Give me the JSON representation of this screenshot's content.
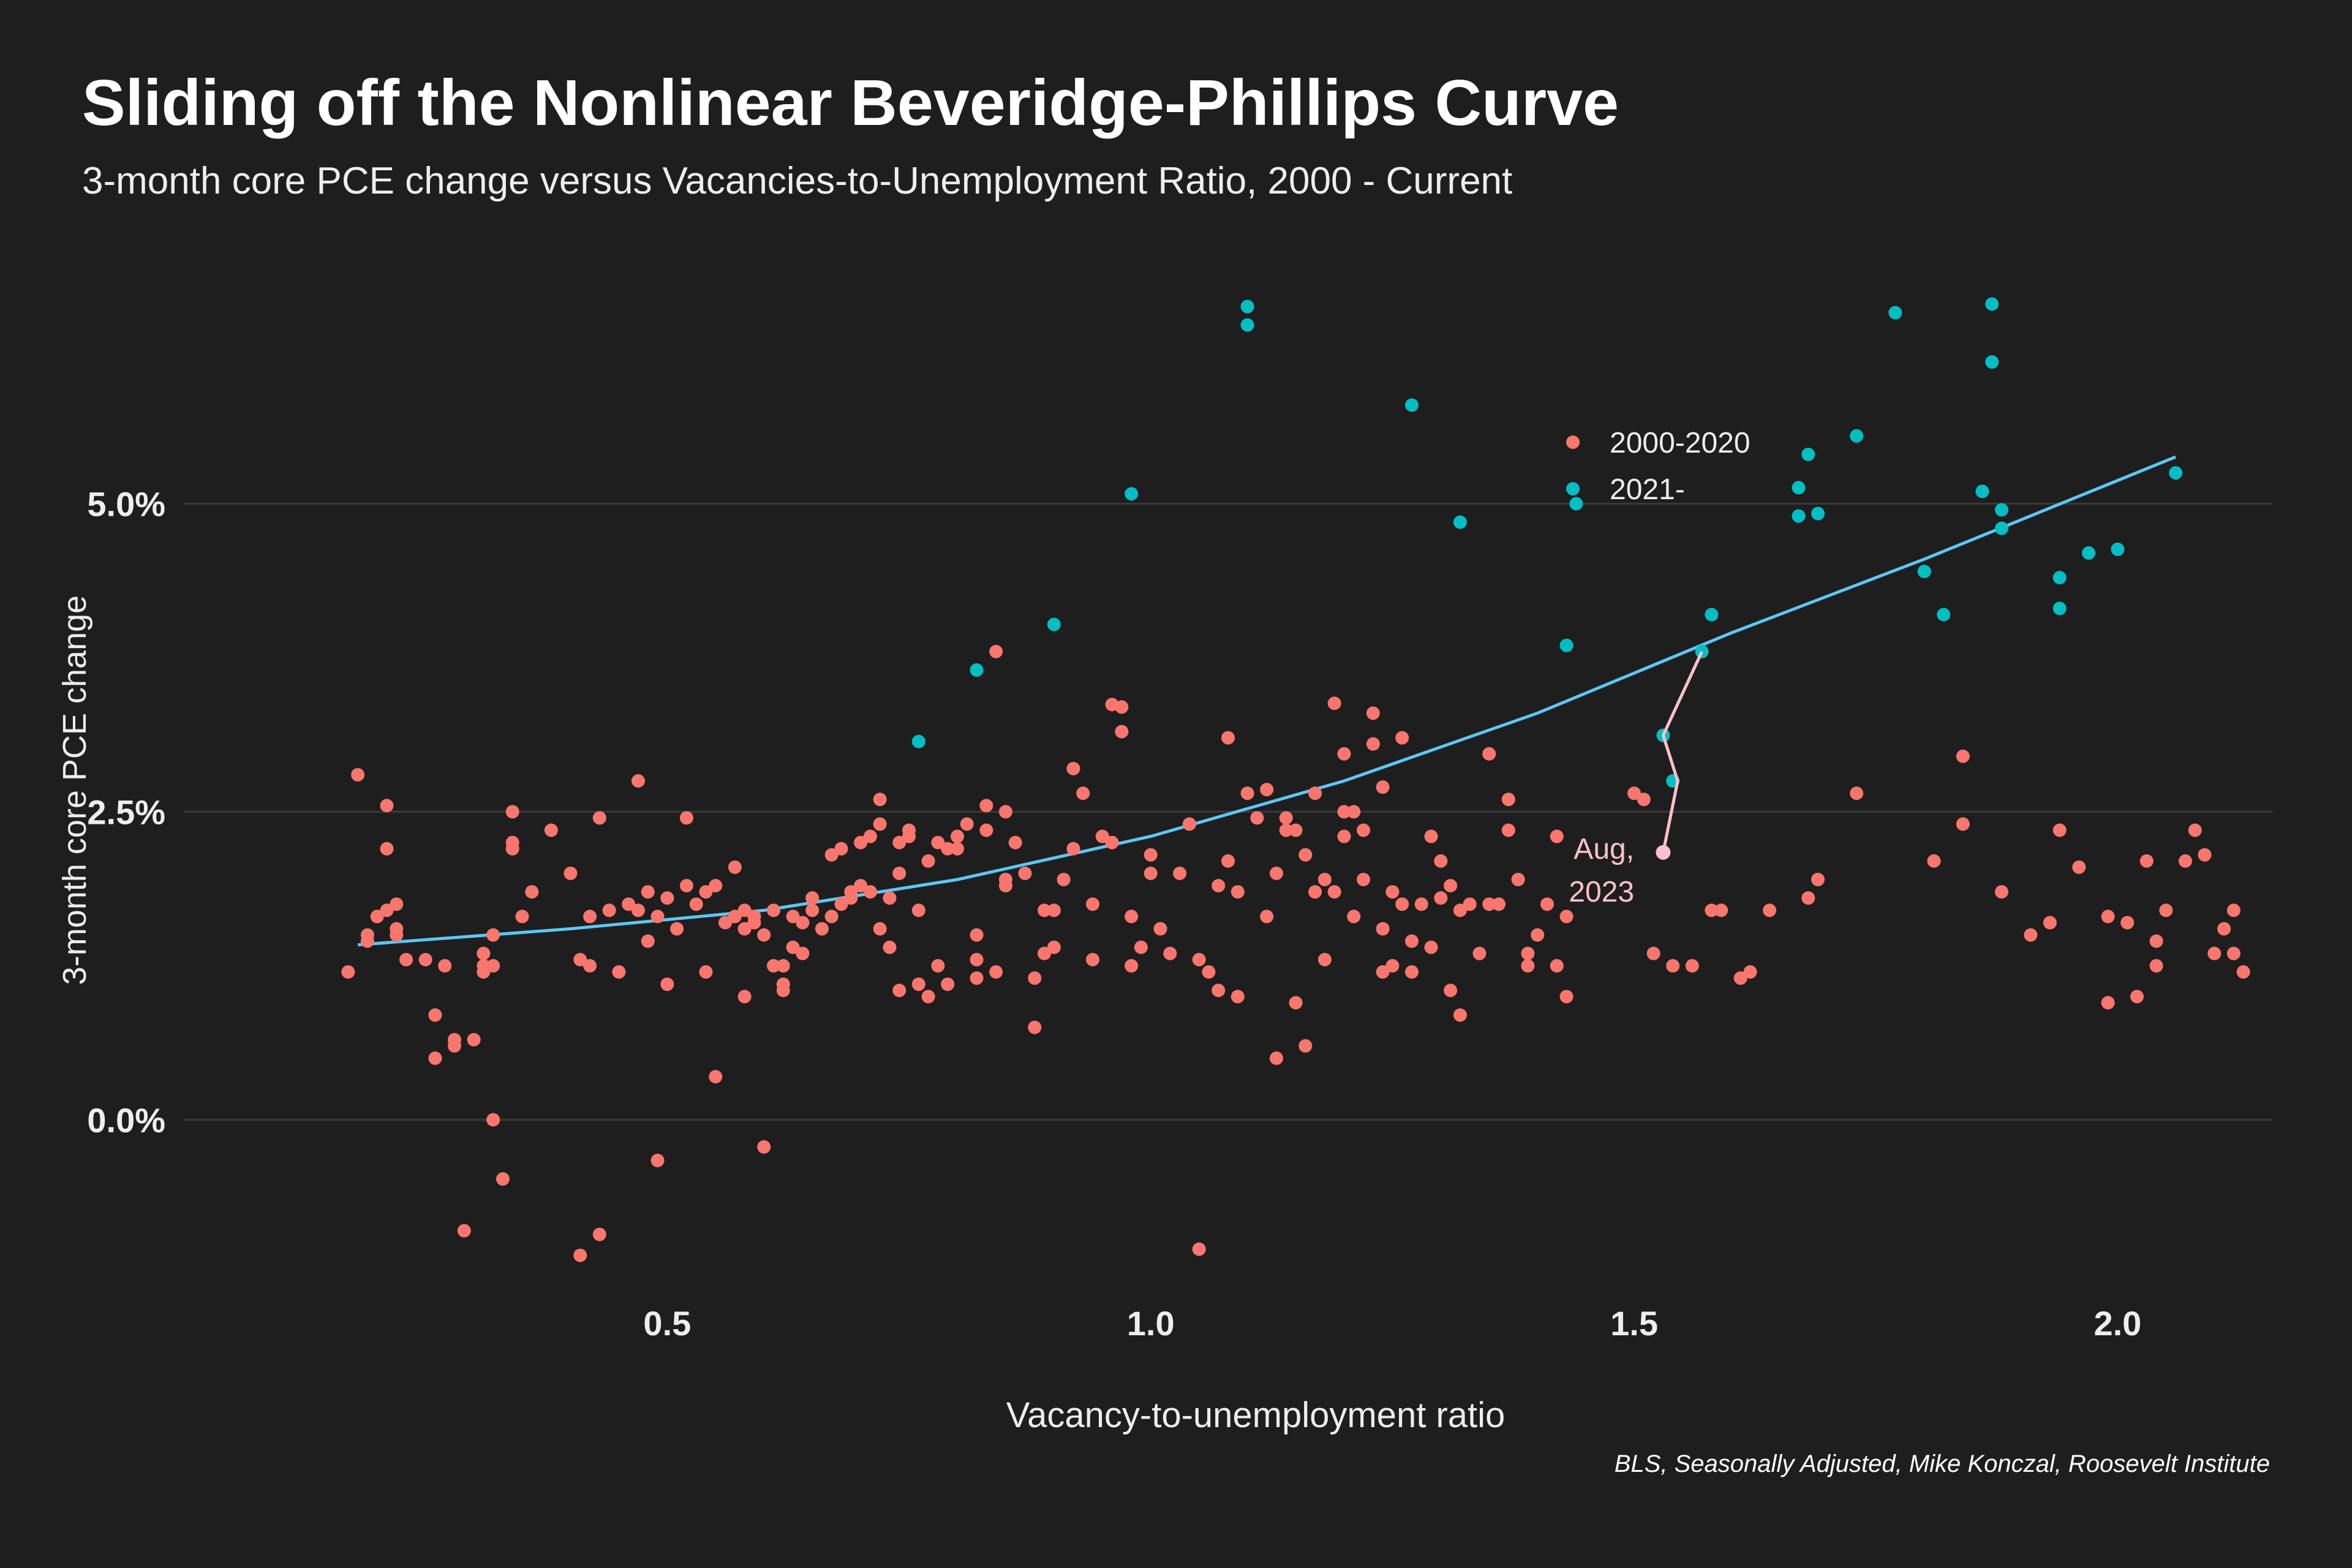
{
  "chart_data": {
    "type": "scatter",
    "title": "Sliding off the Nonlinear Beveridge-Phillips Curve",
    "subtitle": "3-month core PCE change versus Vacancies-to-Unemployment Ratio, 2000 - Current",
    "xlabel": "Vacancy-to-unemployment ratio",
    "ylabel": "3-month core PCE change",
    "caption": "BLS, Seasonally Adjusted, Mike Konczal, Roosevelt Institute",
    "xlim": [
      0.0,
      2.16
    ],
    "ylim": [
      -1.45,
      6.95
    ],
    "x_ticks": [
      0.5,
      1.0,
      1.5,
      2.0
    ],
    "x_tick_labels": [
      "0.5",
      "1.0",
      "1.5",
      "2.0"
    ],
    "y_ticks": [
      0.0,
      2.5,
      5.0
    ],
    "y_tick_labels": [
      "0.0%",
      "2.5%",
      "5.0%"
    ],
    "grid": "horizontal-major",
    "legend_position": "top-right",
    "colors": {
      "background": "#1e1e1e",
      "grid": "#3a3a3a",
      "series_2000_2020": "#f8766d",
      "series_2021": "#00bfc4",
      "trend": "#5bc8f5",
      "recent_path": "#ffc0cb",
      "text": "#eeeeee"
    },
    "series": [
      {
        "name": "2000-2020",
        "color": "#f8766d",
        "points": [
          [
            0.18,
            2.8
          ],
          [
            0.21,
            2.55
          ],
          [
            0.21,
            2.2
          ],
          [
            0.17,
            1.2
          ],
          [
            0.19,
            1.45
          ],
          [
            0.19,
            1.5
          ],
          [
            0.2,
            1.65
          ],
          [
            0.21,
            1.7
          ],
          [
            0.22,
            1.75
          ],
          [
            0.22,
            1.55
          ],
          [
            0.22,
            1.5
          ],
          [
            0.23,
            1.3
          ],
          [
            0.25,
            1.3
          ],
          [
            0.26,
            0.85
          ],
          [
            0.26,
            0.5
          ],
          [
            0.27,
            1.25
          ],
          [
            0.28,
            0.6
          ],
          [
            0.28,
            0.65
          ],
          [
            0.29,
            -0.9
          ],
          [
            0.3,
            0.65
          ],
          [
            0.31,
            1.35
          ],
          [
            0.31,
            1.25
          ],
          [
            0.31,
            1.2
          ],
          [
            0.32,
            1.25
          ],
          [
            0.32,
            1.5
          ],
          [
            0.32,
            0.0
          ],
          [
            0.33,
            -0.48
          ],
          [
            0.34,
            2.2
          ],
          [
            0.34,
            2.25
          ],
          [
            0.34,
            2.5
          ],
          [
            0.35,
            1.65
          ],
          [
            0.36,
            1.85
          ],
          [
            0.38,
            2.35
          ],
          [
            0.4,
            2.0
          ],
          [
            0.41,
            1.3
          ],
          [
            0.41,
            -1.1
          ],
          [
            0.42,
            1.25
          ],
          [
            0.42,
            1.65
          ],
          [
            0.43,
            2.45
          ],
          [
            0.43,
            -0.93
          ],
          [
            0.44,
            1.7
          ],
          [
            0.45,
            1.2
          ],
          [
            0.46,
            1.75
          ],
          [
            0.47,
            1.7
          ],
          [
            0.47,
            2.75
          ],
          [
            0.48,
            1.45
          ],
          [
            0.48,
            1.85
          ],
          [
            0.49,
            -0.33
          ],
          [
            0.49,
            1.65
          ],
          [
            0.5,
            1.8
          ],
          [
            0.5,
            1.1
          ],
          [
            0.51,
            1.55
          ],
          [
            0.52,
            2.45
          ],
          [
            0.52,
            1.9
          ],
          [
            0.53,
            1.75
          ],
          [
            0.54,
            1.2
          ],
          [
            0.54,
            1.85
          ],
          [
            0.55,
            1.9
          ],
          [
            0.55,
            0.35
          ],
          [
            0.56,
            1.6
          ],
          [
            0.57,
            2.05
          ],
          [
            0.57,
            1.65
          ],
          [
            0.58,
            1.7
          ],
          [
            0.58,
            1.55
          ],
          [
            0.58,
            1.0
          ],
          [
            0.59,
            1.65
          ],
          [
            0.59,
            1.6
          ],
          [
            0.6,
            -0.22
          ],
          [
            0.6,
            1.5
          ],
          [
            0.61,
            1.7
          ],
          [
            0.61,
            1.25
          ],
          [
            0.62,
            1.05
          ],
          [
            0.62,
            1.1
          ],
          [
            0.62,
            1.25
          ],
          [
            0.63,
            1.65
          ],
          [
            0.63,
            1.4
          ],
          [
            0.64,
            1.35
          ],
          [
            0.64,
            1.6
          ],
          [
            0.65,
            1.8
          ],
          [
            0.65,
            1.7
          ],
          [
            0.66,
            1.55
          ],
          [
            0.67,
            1.65
          ],
          [
            0.67,
            2.15
          ],
          [
            0.68,
            2.2
          ],
          [
            0.68,
            1.75
          ],
          [
            0.69,
            1.8
          ],
          [
            0.69,
            1.85
          ],
          [
            0.7,
            1.9
          ],
          [
            0.7,
            2.25
          ],
          [
            0.71,
            1.85
          ],
          [
            0.71,
            2.3
          ],
          [
            0.72,
            2.6
          ],
          [
            0.72,
            2.4
          ],
          [
            0.72,
            1.55
          ],
          [
            0.73,
            1.4
          ],
          [
            0.73,
            1.8
          ],
          [
            0.74,
            2.25
          ],
          [
            0.74,
            1.05
          ],
          [
            0.74,
            2.0
          ],
          [
            0.75,
            2.3
          ],
          [
            0.75,
            2.35
          ],
          [
            0.76,
            1.7
          ],
          [
            0.76,
            1.1
          ],
          [
            0.77,
            2.1
          ],
          [
            0.77,
            1.0
          ],
          [
            0.78,
            1.25
          ],
          [
            0.78,
            2.25
          ],
          [
            0.79,
            2.2
          ],
          [
            0.79,
            1.1
          ],
          [
            0.8,
            2.3
          ],
          [
            0.8,
            2.2
          ],
          [
            0.81,
            2.4
          ],
          [
            0.82,
            1.3
          ],
          [
            0.82,
            1.5
          ],
          [
            0.82,
            1.15
          ],
          [
            0.83,
            2.55
          ],
          [
            0.83,
            2.35
          ],
          [
            0.84,
            3.8
          ],
          [
            0.84,
            1.2
          ],
          [
            0.85,
            1.95
          ],
          [
            0.85,
            2.5
          ],
          [
            0.85,
            1.9
          ],
          [
            0.86,
            2.25
          ],
          [
            0.87,
            2.0
          ],
          [
            0.88,
            1.15
          ],
          [
            0.88,
            0.75
          ],
          [
            0.89,
            1.35
          ],
          [
            0.89,
            1.7
          ],
          [
            0.9,
            1.7
          ],
          [
            0.9,
            1.4
          ],
          [
            0.91,
            1.95
          ],
          [
            0.92,
            2.85
          ],
          [
            0.92,
            2.2
          ],
          [
            0.93,
            2.65
          ],
          [
            0.94,
            1.75
          ],
          [
            0.94,
            1.3
          ],
          [
            0.95,
            2.3
          ],
          [
            0.96,
            2.25
          ],
          [
            0.96,
            3.37
          ],
          [
            0.97,
            3.35
          ],
          [
            0.97,
            3.15
          ],
          [
            0.98,
            1.25
          ],
          [
            0.98,
            1.65
          ],
          [
            0.99,
            1.4
          ],
          [
            1.0,
            2.15
          ],
          [
            1.0,
            2.0
          ],
          [
            1.01,
            1.55
          ],
          [
            1.02,
            1.35
          ],
          [
            1.03,
            2.0
          ],
          [
            1.04,
            2.4
          ],
          [
            1.05,
            1.3
          ],
          [
            1.05,
            -1.05
          ],
          [
            1.06,
            1.2
          ],
          [
            1.07,
            1.9
          ],
          [
            1.07,
            1.05
          ],
          [
            1.08,
            3.1
          ],
          [
            1.08,
            2.1
          ],
          [
            1.09,
            1.0
          ],
          [
            1.09,
            1.85
          ],
          [
            1.1,
            2.65
          ],
          [
            1.11,
            2.45
          ],
          [
            1.12,
            2.68
          ],
          [
            1.12,
            1.65
          ],
          [
            1.13,
            2.0
          ],
          [
            1.13,
            0.5
          ],
          [
            1.14,
            2.35
          ],
          [
            1.14,
            2.45
          ],
          [
            1.15,
            2.35
          ],
          [
            1.15,
            0.95
          ],
          [
            1.16,
            2.15
          ],
          [
            1.16,
            0.6
          ],
          [
            1.17,
            1.85
          ],
          [
            1.17,
            2.65
          ],
          [
            1.18,
            1.3
          ],
          [
            1.18,
            1.95
          ],
          [
            1.19,
            3.38
          ],
          [
            1.19,
            1.85
          ],
          [
            1.2,
            2.5
          ],
          [
            1.2,
            2.3
          ],
          [
            1.2,
            2.97
          ],
          [
            1.21,
            1.65
          ],
          [
            1.21,
            2.5
          ],
          [
            1.22,
            1.95
          ],
          [
            1.22,
            2.35
          ],
          [
            1.23,
            3.3
          ],
          [
            1.23,
            3.05
          ],
          [
            1.24,
            1.55
          ],
          [
            1.24,
            2.7
          ],
          [
            1.24,
            1.2
          ],
          [
            1.25,
            1.85
          ],
          [
            1.25,
            1.25
          ],
          [
            1.26,
            1.75
          ],
          [
            1.26,
            3.1
          ],
          [
            1.27,
            1.45
          ],
          [
            1.27,
            1.2
          ],
          [
            1.28,
            1.75
          ],
          [
            1.29,
            2.3
          ],
          [
            1.29,
            1.4
          ],
          [
            1.3,
            2.1
          ],
          [
            1.3,
            1.8
          ],
          [
            1.31,
            1.9
          ],
          [
            1.31,
            1.05
          ],
          [
            1.32,
            0.85
          ],
          [
            1.32,
            1.7
          ],
          [
            1.33,
            1.75
          ],
          [
            1.34,
            1.35
          ],
          [
            1.35,
            1.75
          ],
          [
            1.35,
            2.97
          ],
          [
            1.36,
            1.75
          ],
          [
            1.37,
            2.6
          ],
          [
            1.37,
            2.35
          ],
          [
            1.38,
            1.95
          ],
          [
            1.39,
            1.25
          ],
          [
            1.39,
            1.35
          ],
          [
            1.4,
            1.5
          ],
          [
            1.41,
            1.75
          ],
          [
            1.42,
            2.3
          ],
          [
            1.42,
            1.25
          ],
          [
            1.43,
            1.0
          ],
          [
            1.43,
            1.65
          ],
          [
            1.5,
            2.65
          ],
          [
            1.51,
            2.6
          ],
          [
            1.52,
            1.35
          ],
          [
            1.54,
            1.25
          ],
          [
            1.56,
            1.25
          ],
          [
            1.58,
            1.7
          ],
          [
            1.59,
            1.7
          ],
          [
            1.61,
            1.15
          ],
          [
            1.62,
            1.2
          ],
          [
            1.64,
            1.7
          ],
          [
            1.68,
            1.8
          ],
          [
            1.69,
            1.95
          ],
          [
            1.73,
            2.65
          ],
          [
            1.81,
            2.1
          ],
          [
            1.84,
            2.95
          ],
          [
            1.84,
            2.4
          ],
          [
            1.88,
            1.85
          ],
          [
            1.91,
            1.5
          ],
          [
            1.93,
            1.6
          ],
          [
            1.94,
            2.35
          ],
          [
            1.96,
            2.05
          ],
          [
            1.99,
            1.65
          ],
          [
            1.99,
            0.95
          ],
          [
            2.01,
            1.6
          ],
          [
            2.02,
            1.0
          ],
          [
            2.03,
            2.1
          ],
          [
            2.04,
            1.45
          ],
          [
            2.04,
            1.25
          ],
          [
            2.05,
            1.7
          ],
          [
            2.07,
            2.1
          ],
          [
            2.08,
            2.35
          ],
          [
            2.09,
            2.15
          ],
          [
            2.1,
            1.35
          ],
          [
            2.11,
            1.55
          ],
          [
            2.12,
            1.35
          ],
          [
            2.12,
            1.7
          ],
          [
            2.13,
            1.2
          ]
        ]
      },
      {
        "name": "2021-",
        "color": "#00bfc4",
        "points": [
          [
            0.76,
            3.07
          ],
          [
            0.82,
            3.65
          ],
          [
            0.9,
            4.02
          ],
          [
            0.98,
            5.08
          ],
          [
            1.1,
            6.6
          ],
          [
            1.1,
            6.45
          ],
          [
            1.27,
            5.8
          ],
          [
            1.32,
            4.85
          ],
          [
            1.43,
            3.85
          ],
          [
            1.44,
            5.0
          ],
          [
            1.53,
            3.12
          ],
          [
            1.54,
            2.75
          ],
          [
            1.53,
            2.17
          ],
          [
            1.57,
            3.8
          ],
          [
            1.58,
            4.1
          ],
          [
            1.67,
            5.13
          ],
          [
            1.67,
            4.9
          ],
          [
            1.68,
            5.4
          ],
          [
            1.69,
            4.92
          ],
          [
            1.73,
            5.55
          ],
          [
            1.77,
            6.55
          ],
          [
            1.8,
            4.45
          ],
          [
            1.82,
            4.1
          ],
          [
            1.86,
            5.1
          ],
          [
            1.87,
            6.15
          ],
          [
            1.87,
            6.62
          ],
          [
            1.88,
            4.95
          ],
          [
            1.88,
            4.8
          ],
          [
            1.94,
            4.4
          ],
          [
            1.94,
            4.15
          ],
          [
            1.97,
            4.6
          ],
          [
            2.0,
            4.63
          ],
          [
            2.06,
            5.25
          ]
        ]
      }
    ],
    "trend_line": {
      "points": [
        [
          0.18,
          1.42
        ],
        [
          0.4,
          1.55
        ],
        [
          0.6,
          1.7
        ],
        [
          0.8,
          1.95
        ],
        [
          1.0,
          2.3
        ],
        [
          1.2,
          2.75
        ],
        [
          1.4,
          3.3
        ],
        [
          1.6,
          3.95
        ],
        [
          1.8,
          4.55
        ],
        [
          2.06,
          5.38
        ]
      ]
    },
    "recent_path": {
      "points": [
        [
          1.57,
          3.8
        ],
        [
          1.53,
          3.12
        ],
        [
          1.545,
          2.75
        ],
        [
          1.53,
          2.17
        ]
      ]
    },
    "annotations": [
      {
        "text": "Aug,",
        "x": 1.5,
        "y": 2.12
      },
      {
        "text": "2023",
        "x": 1.5,
        "y": 1.77
      }
    ]
  }
}
